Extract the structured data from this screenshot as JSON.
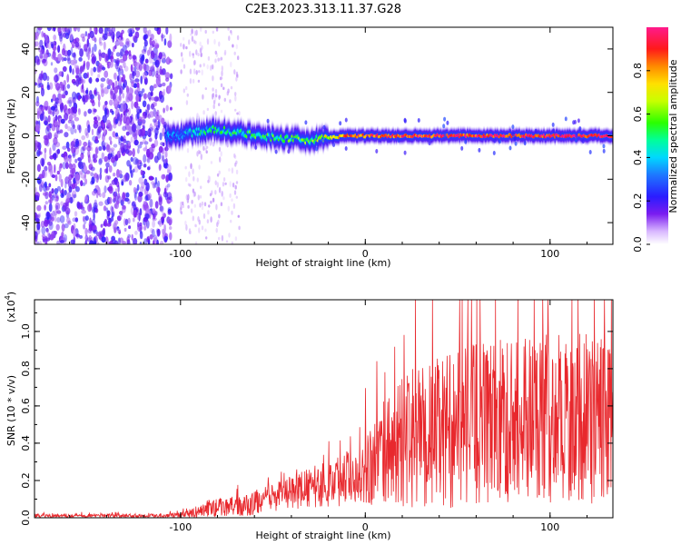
{
  "title": "C2E3.2023.313.11.37.G28",
  "colors": {
    "snr_line": "#e8282d",
    "axes": "#000000"
  },
  "chart_data": [
    {
      "type": "heatmap",
      "name": "spectrogram",
      "xlabel": "Height of straight line (km)",
      "ylabel": "Frequency (Hz)",
      "xlim": [
        -179,
        134
      ],
      "ylim": [
        -50,
        50
      ],
      "xticks": [
        -100,
        0,
        100
      ],
      "xtick_labels": [
        "-100",
        "0",
        "100"
      ],
      "yticks": [
        -40,
        -20,
        0,
        20,
        40
      ],
      "ytick_labels": [
        "-40",
        "-20",
        "0",
        "20",
        "40"
      ],
      "colorbar": {
        "label": "Normalized spectral amplitude",
        "range": [
          0,
          1
        ],
        "ticks": [
          0.0,
          0.2,
          0.4,
          0.6,
          0.8
        ],
        "tick_labels": [
          "0.0",
          "0.2",
          "0.4",
          "0.6",
          "0.8"
        ],
        "colormap": "rainbow-white-to-magenta"
      },
      "description_points": [
        {
          "x": -179,
          "freq": 0,
          "amplitude": 0.25
        },
        {
          "x": -105,
          "freq": 0,
          "amplitude": 0.3
        },
        {
          "x": -80,
          "freq": 3,
          "amplitude": 0.45
        },
        {
          "x": -60,
          "freq": 0,
          "amplitude": 0.5
        },
        {
          "x": -30,
          "freq": -2,
          "amplitude": 0.55
        },
        {
          "x": -10,
          "freq": 0,
          "amplitude": 0.85
        },
        {
          "x": 40,
          "freq": 0,
          "amplitude": 0.9
        },
        {
          "x": 134,
          "freq": 0,
          "amplitude": 0.95
        }
      ]
    },
    {
      "type": "line",
      "name": "snr",
      "xlabel": "Height of straight line (km)",
      "ylabel": "SNR (10 * v/v)",
      "ymultiplier": "(x10",
      "ymultiplier_exp": "4",
      "ymultiplier_close": ")",
      "xlim": [
        -179,
        134
      ],
      "ylim": [
        0,
        1.17
      ],
      "xticks": [
        -100,
        0,
        100
      ],
      "xtick_labels": [
        "-100",
        "0",
        "100"
      ],
      "yticks": [
        0.0,
        0.2,
        0.4,
        0.6,
        0.8,
        1.0
      ],
      "ytick_labels": [
        "0.0",
        "0.2",
        "0.4",
        "0.6",
        "0.8",
        "1.0"
      ],
      "envelope": {
        "x": [
          -179,
          -110,
          -95,
          -85,
          -75,
          -65,
          -55,
          -45,
          -35,
          -25,
          -15,
          -5,
          5,
          15,
          25,
          35,
          45,
          55,
          65,
          75,
          85,
          95,
          105,
          115,
          125,
          134
        ],
        "mean": [
          0.012,
          0.012,
          0.02,
          0.05,
          0.06,
          0.06,
          0.1,
          0.12,
          0.15,
          0.17,
          0.2,
          0.24,
          0.3,
          0.38,
          0.42,
          0.45,
          0.47,
          0.5,
          0.5,
          0.52,
          0.55,
          0.55,
          0.53,
          0.55,
          0.52,
          0.55
        ],
        "amp": [
          0.01,
          0.01,
          0.02,
          0.05,
          0.05,
          0.06,
          0.07,
          0.08,
          0.1,
          0.12,
          0.14,
          0.16,
          0.25,
          0.32,
          0.38,
          0.4,
          0.42,
          0.45,
          0.45,
          0.45,
          0.45,
          0.47,
          0.47,
          0.47,
          0.45,
          0.45
        ]
      }
    }
  ]
}
